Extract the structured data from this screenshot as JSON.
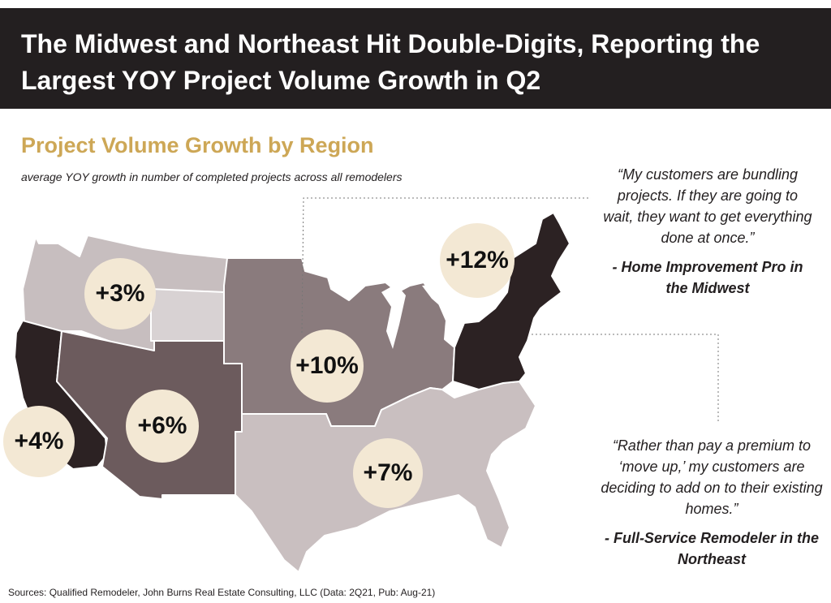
{
  "header": {
    "title": "The Midwest and Northeast Hit Double-Digits, Reporting the Largest YOY Project Volume Growth in Q2"
  },
  "chart": {
    "title": "Project Volume Growth by Region",
    "subtitle": "average YOY growth in number of completed projects across all remodelers"
  },
  "regions": [
    {
      "label": "+3%",
      "value": 3,
      "color": "#c7bebf"
    },
    {
      "label": "+4%",
      "value": 4,
      "color": "#2c2223"
    },
    {
      "label": "+6%",
      "value": 6,
      "color": "#6c5b5d"
    },
    {
      "label": "+10%",
      "value": 10,
      "color": "#8a7b7d"
    },
    {
      "label": "+7%",
      "value": 7,
      "color": "#c9bfc0"
    },
    {
      "label": "+12%",
      "value": 12,
      "color": "#2c2223"
    }
  ],
  "quotes": [
    {
      "text": "“My customers are bundling projects. If they are going to wait, they want to get everything done at once.”",
      "attribution": "- Home Improvement Pro in the Midwest"
    },
    {
      "text": "“Rather than pay a premium to ‘move up,’ my customers are deciding to add on to their existing homes.”",
      "attribution": "- Full-Service Remodeler in the Northeast"
    }
  ],
  "footer": {
    "sources": "Sources: Qualified Remodeler, John Burns Real Estate Consulting, LLC (Data: 2Q21, Pub: Aug-21)"
  }
}
